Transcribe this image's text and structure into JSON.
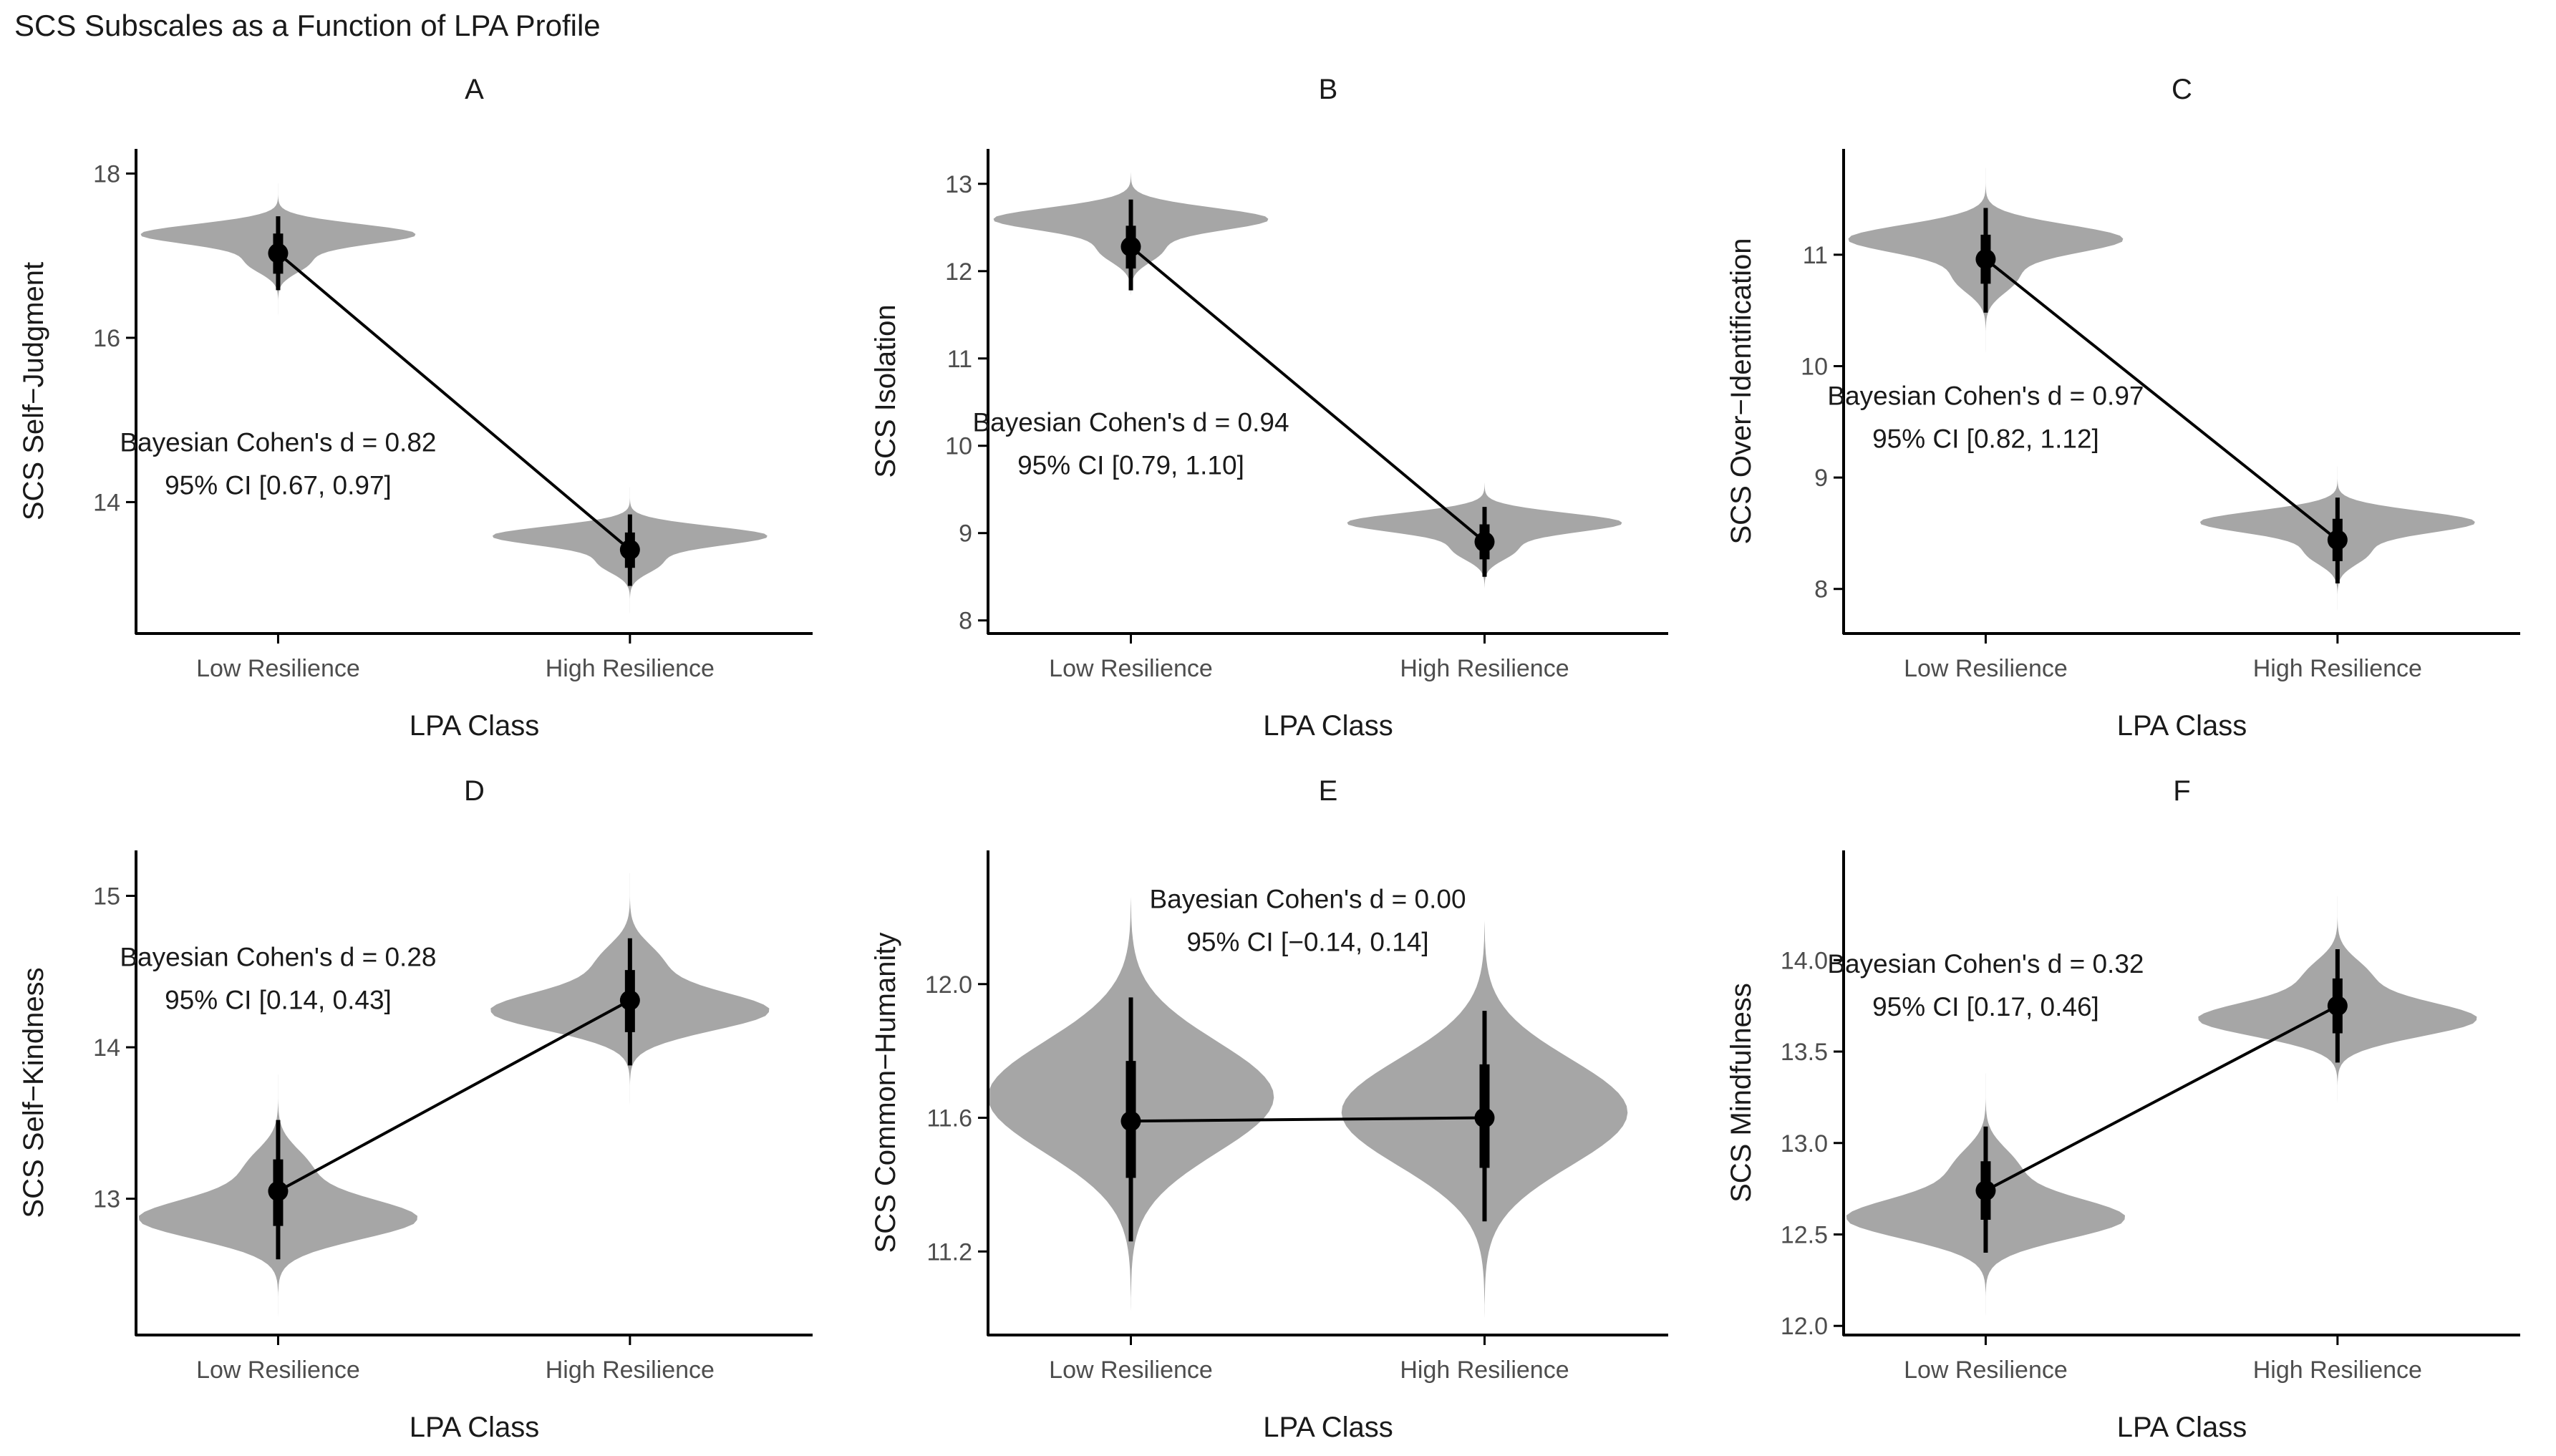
{
  "figure": {
    "title": "SCS Subscales as a Function of LPA Profile"
  },
  "colors": {
    "violin": "#a6a6a6",
    "ink": "#000000",
    "axis": "#000000",
    "tick_text": "#4d4d4d"
  },
  "chart_data": [
    {
      "type": "violin",
      "panel": "A",
      "ylabel": "SCS Self−Judgment",
      "xlabel": "LPA Class",
      "categories": [
        "Low Resilience",
        "High Resilience"
      ],
      "ylim": [
        12.4,
        18.3
      ],
      "yticks": [
        14,
        16,
        18
      ],
      "yticklabels": [
        "14",
        "16",
        "18"
      ],
      "density_shape": [
        "skew_down",
        "skew_down"
      ],
      "groups": [
        {
          "name": "Low Resilience",
          "mean": 17.03,
          "ci66": [
            16.78,
            17.27
          ],
          "ci95": [
            16.58,
            17.48
          ],
          "violin_min": 16.27,
          "violin_max": 17.88
        },
        {
          "name": "High Resilience",
          "mean": 13.42,
          "ci66": [
            13.2,
            13.63
          ],
          "ci95": [
            12.98,
            13.85
          ],
          "violin_min": 12.64,
          "violin_max": 14.18
        }
      ],
      "annotation": [
        "Bayesian Cohen's d = 0.82",
        "95% CI [0.67, 0.97]"
      ],
      "annotation_center": [
        1.0,
        14.55
      ]
    },
    {
      "type": "violin",
      "panel": "B",
      "ylabel": "SCS Isolation",
      "xlabel": "LPA Class",
      "categories": [
        "Low Resilience",
        "High Resilience"
      ],
      "ylim": [
        7.85,
        13.4
      ],
      "yticks": [
        8,
        9,
        10,
        11,
        12,
        13
      ],
      "yticklabels": [
        "8",
        "9",
        "10",
        "11",
        "12",
        "13"
      ],
      "density_shape": [
        "skew_down",
        "skew_down"
      ],
      "groups": [
        {
          "name": "Low Resilience",
          "mean": 12.28,
          "ci66": [
            12.03,
            12.52
          ],
          "ci95": [
            11.78,
            12.82
          ],
          "violin_min": 11.55,
          "violin_max": 13.25
        },
        {
          "name": "High Resilience",
          "mean": 8.9,
          "ci66": [
            8.7,
            9.1
          ],
          "ci95": [
            8.5,
            9.3
          ],
          "violin_min": 8.22,
          "violin_max": 9.68
        }
      ],
      "annotation": [
        "Bayesian Cohen's d = 0.94",
        "95% CI [0.79, 1.10]"
      ],
      "annotation_center": [
        1.0,
        10.1
      ]
    },
    {
      "type": "violin",
      "panel": "C",
      "ylabel": "SCS Over−Identification",
      "xlabel": "LPA Class",
      "categories": [
        "Low Resilience",
        "High Resilience"
      ],
      "ylim": [
        7.6,
        11.95
      ],
      "yticks": [
        8,
        9,
        10,
        11
      ],
      "yticklabels": [
        "8",
        "9",
        "10",
        "11"
      ],
      "density_shape": [
        "skew_down",
        "skew_down"
      ],
      "groups": [
        {
          "name": "Low Resilience",
          "mean": 10.96,
          "ci66": [
            10.74,
            11.18
          ],
          "ci95": [
            10.48,
            11.42
          ],
          "violin_min": 10.12,
          "violin_max": 11.78
        },
        {
          "name": "High Resilience",
          "mean": 8.44,
          "ci66": [
            8.25,
            8.63
          ],
          "ci95": [
            8.05,
            8.82
          ],
          "violin_min": 7.8,
          "violin_max": 9.1
        }
      ],
      "annotation": [
        "Bayesian Cohen's d = 0.97",
        "95% CI [0.82, 1.12]"
      ],
      "annotation_center": [
        1.0,
        9.6
      ]
    },
    {
      "type": "violin",
      "panel": "D",
      "ylabel": "SCS Self−Kindness",
      "xlabel": "LPA Class",
      "categories": [
        "Low Resilience",
        "High Resilience"
      ],
      "ylim": [
        12.1,
        15.3
      ],
      "yticks": [
        13,
        14,
        15
      ],
      "yticklabels": [
        "13",
        "14",
        "15"
      ],
      "density_shape": [
        "skew_up",
        "skew_up"
      ],
      "groups": [
        {
          "name": "Low Resilience",
          "mean": 13.05,
          "ci66": [
            12.82,
            13.26
          ],
          "ci95": [
            12.6,
            13.52
          ],
          "violin_min": 12.22,
          "violin_max": 13.82
        },
        {
          "name": "High Resilience",
          "mean": 14.31,
          "ci66": [
            14.1,
            14.51
          ],
          "ci95": [
            13.88,
            14.72
          ],
          "violin_min": 13.62,
          "violin_max": 15.15
        }
      ],
      "annotation": [
        "Bayesian Cohen's d = 0.28",
        "95% CI [0.14, 0.43]"
      ],
      "annotation_center": [
        1.0,
        14.5
      ]
    },
    {
      "type": "violin",
      "panel": "E",
      "ylabel": "SCS Common−Humanity",
      "xlabel": "LPA Class",
      "categories": [
        "Low Resilience",
        "High Resilience"
      ],
      "ylim": [
        10.95,
        12.4
      ],
      "yticks": [
        11.2,
        11.6,
        12.0
      ],
      "yticklabels": [
        "11.2",
        "11.6",
        "12.0"
      ],
      "density_shape": [
        "wide",
        "wide"
      ],
      "groups": [
        {
          "name": "Low Resilience",
          "mean": 11.59,
          "ci66": [
            11.42,
            11.77
          ],
          "ci95": [
            11.23,
            11.96
          ],
          "violin_min": 11.02,
          "violin_max": 12.26
        },
        {
          "name": "High Resilience",
          "mean": 11.6,
          "ci66": [
            11.45,
            11.76
          ],
          "ci95": [
            11.29,
            11.92
          ],
          "violin_min": 11.0,
          "violin_max": 12.19
        }
      ],
      "annotation": [
        "Bayesian Cohen's d = 0.00",
        "95% CI [−0.14, 0.14]"
      ],
      "annotation_center": [
        1.5,
        12.21
      ]
    },
    {
      "type": "violin",
      "panel": "F",
      "ylabel": "SCS Mindfulness",
      "xlabel": "LPA Class",
      "categories": [
        "Low Resilience",
        "High Resilience"
      ],
      "ylim": [
        11.95,
        14.6
      ],
      "yticks": [
        12.0,
        12.5,
        13.0,
        13.5,
        14.0
      ],
      "yticklabels": [
        "12.0",
        "12.5",
        "13.0",
        "13.5",
        "14.0"
      ],
      "density_shape": [
        "skew_up",
        "skew_up"
      ],
      "groups": [
        {
          "name": "Low Resilience",
          "mean": 12.74,
          "ci66": [
            12.58,
            12.9
          ],
          "ci95": [
            12.4,
            13.09
          ],
          "violin_min": 12.05,
          "violin_max": 13.38
        },
        {
          "name": "High Resilience",
          "mean": 13.75,
          "ci66": [
            13.6,
            13.9
          ],
          "ci95": [
            13.44,
            14.06
          ],
          "violin_min": 13.22,
          "violin_max": 14.35
        }
      ],
      "annotation": [
        "Bayesian Cohen's d = 0.32",
        "95% CI [0.17, 0.46]"
      ],
      "annotation_center": [
        1.0,
        13.9
      ]
    }
  ]
}
